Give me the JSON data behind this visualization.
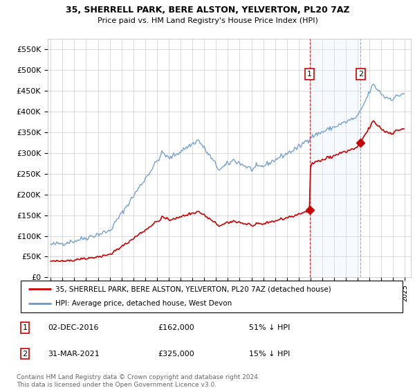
{
  "title": "35, SHERRELL PARK, BERE ALSTON, YELVERTON, PL20 7AZ",
  "subtitle": "Price paid vs. HM Land Registry's House Price Index (HPI)",
  "ylim": [
    0,
    575000
  ],
  "yticks": [
    0,
    50000,
    100000,
    150000,
    200000,
    250000,
    300000,
    350000,
    400000,
    450000,
    500000,
    550000
  ],
  "ytick_labels": [
    "£0",
    "£50K",
    "£100K",
    "£150K",
    "£200K",
    "£250K",
    "£300K",
    "£350K",
    "£400K",
    "£450K",
    "£500K",
    "£550K"
  ],
  "xlim_start": 1994.75,
  "xlim_end": 2025.5,
  "background_color": "#ffffff",
  "grid_color": "#cccccc",
  "hpi_color": "#6699cc",
  "price_color": "#cc0000",
  "transaction1_date": 2016.92,
  "transaction1_price": 162000,
  "transaction2_date": 2021.25,
  "transaction2_price": 325000,
  "legend_property": "35, SHERRELL PARK, BERE ALSTON, YELVERTON, PL20 7AZ (detached house)",
  "legend_hpi": "HPI: Average price, detached house, West Devon",
  "footnote": "Contains HM Land Registry data © Crown copyright and database right 2024.\nThis data is licensed under the Open Government Licence v3.0.",
  "shade_color": "#ddeeff",
  "title_fontsize": 9,
  "subtitle_fontsize": 8
}
